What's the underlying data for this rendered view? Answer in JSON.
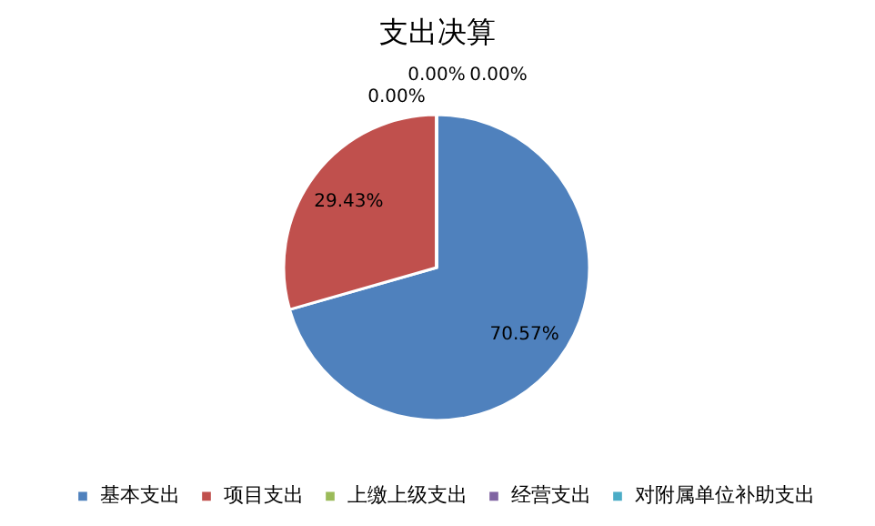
{
  "chart_data": {
    "type": "pie",
    "title": "支出决算",
    "categories": [
      "基本支出",
      "项目支出",
      "上缴上级支出",
      "经营支出",
      "对附属单位补助支出"
    ],
    "values": [
      70.57,
      29.43,
      0,
      0,
      0
    ],
    "colors": [
      "#4f81bd",
      "#c0504d",
      "#9bbb59",
      "#8064a2",
      "#4bacc6"
    ],
    "value_labels": [
      "70.57%",
      "29.43%",
      "0.00%",
      "0.00%",
      "0.00%"
    ],
    "legend": "bottom"
  }
}
